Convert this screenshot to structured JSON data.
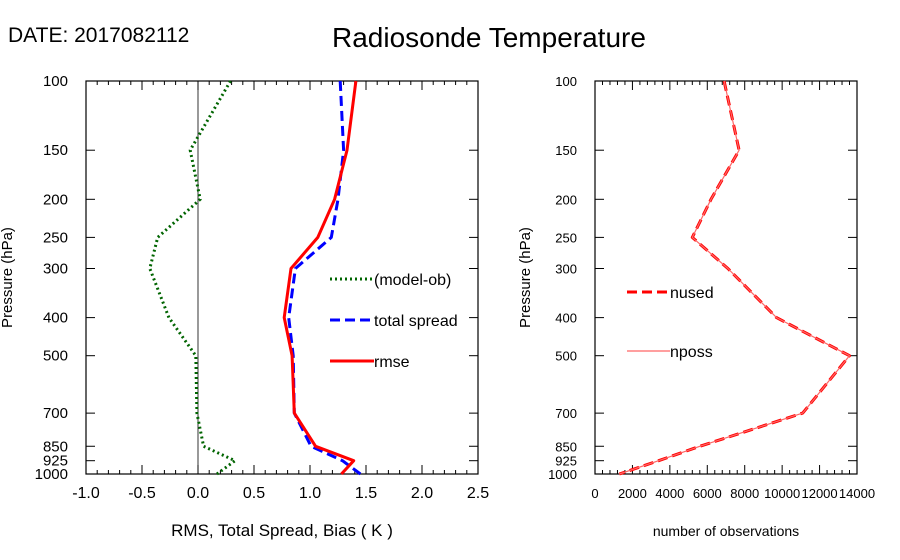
{
  "header": {
    "date_label": "DATE: 2017082112",
    "title": "Radiosonde Temperature"
  },
  "chart_data": [
    {
      "type": "line",
      "id": "left",
      "xlabel": "RMS, Total Spread, Bias ( K )",
      "ylabel": "Pressure (hPa)",
      "xlim": [
        -1.0,
        2.5
      ],
      "ylim": [
        1000,
        100
      ],
      "yscale": "log",
      "x_ticks": [
        -1.0,
        -0.5,
        0.0,
        0.5,
        1.0,
        1.5,
        2.0,
        2.5
      ],
      "x_tick_labels": [
        "-1.0",
        "-0.5",
        "0.0",
        "0.5",
        "1.0",
        "1.5",
        "2.0",
        "2.5"
      ],
      "y_ticks": [
        100,
        150,
        200,
        250,
        300,
        400,
        500,
        700,
        850,
        925,
        1000
      ],
      "y_tick_labels": [
        "100",
        "150",
        "200",
        "250",
        "300",
        "400",
        "500",
        "700",
        "850",
        "925",
        "1000"
      ],
      "zero_line": 0.0,
      "legend_position": "right-middle",
      "series": [
        {
          "name": "(model-ob)",
          "color": "#006400",
          "style": "dotted",
          "pressure": [
            100,
            150,
            200,
            250,
            300,
            400,
            500,
            700,
            850,
            925,
            1000
          ],
          "values": [
            0.29,
            -0.07,
            0.02,
            -0.36,
            -0.43,
            -0.26,
            -0.02,
            -0.01,
            0.05,
            0.33,
            0.17
          ]
        },
        {
          "name": "total spread",
          "color": "#0000ff",
          "style": "dashed",
          "pressure": [
            100,
            150,
            200,
            250,
            300,
            400,
            500,
            700,
            850,
            925,
            1000
          ],
          "values": [
            1.27,
            1.3,
            1.25,
            1.19,
            0.87,
            0.81,
            0.85,
            0.86,
            1.01,
            1.29,
            1.45
          ]
        },
        {
          "name": "rmse",
          "color": "#ff0000",
          "style": "solid",
          "pressure": [
            100,
            150,
            200,
            250,
            300,
            400,
            500,
            700,
            850,
            925,
            1000
          ],
          "values": [
            1.41,
            1.33,
            1.22,
            1.07,
            0.83,
            0.77,
            0.84,
            0.86,
            1.05,
            1.39,
            1.28
          ]
        }
      ]
    },
    {
      "type": "line",
      "id": "right",
      "xlabel": "number of observations",
      "ylabel": "Pressure (hPa)",
      "xlim": [
        0,
        14000
      ],
      "ylim": [
        1000,
        100
      ],
      "yscale": "log",
      "x_ticks": [
        0,
        2000,
        4000,
        6000,
        8000,
        10000,
        12000,
        14000
      ],
      "x_tick_labels": [
        "0",
        "2000",
        "4000",
        "6000",
        "8000",
        "10000",
        "12000",
        "14000"
      ],
      "y_ticks": [
        100,
        150,
        200,
        250,
        300,
        400,
        500,
        700,
        850,
        925,
        1000
      ],
      "y_tick_labels": [
        "100",
        "150",
        "200",
        "250",
        "300",
        "400",
        "500",
        "700",
        "850",
        "925",
        "1000"
      ],
      "legend_position": "left-middle",
      "series": [
        {
          "name": "nused",
          "color": "#ff0000",
          "style": "dashed",
          "pressure": [
            100,
            150,
            200,
            250,
            300,
            400,
            500,
            700,
            850,
            925,
            1000
          ],
          "values": [
            6900,
            7700,
            6200,
            5200,
            7100,
            9700,
            13600,
            11100,
            5600,
            3400,
            1300
          ]
        },
        {
          "name": "nposs",
          "color": "#ff6666",
          "style": "solid",
          "pressure": [
            100,
            150,
            200,
            250,
            300,
            400,
            500,
            700,
            850,
            925,
            1000
          ],
          "values": [
            6900,
            7700,
            6200,
            5200,
            7100,
            9700,
            13600,
            11100,
            5600,
            3400,
            1300
          ]
        }
      ]
    }
  ]
}
